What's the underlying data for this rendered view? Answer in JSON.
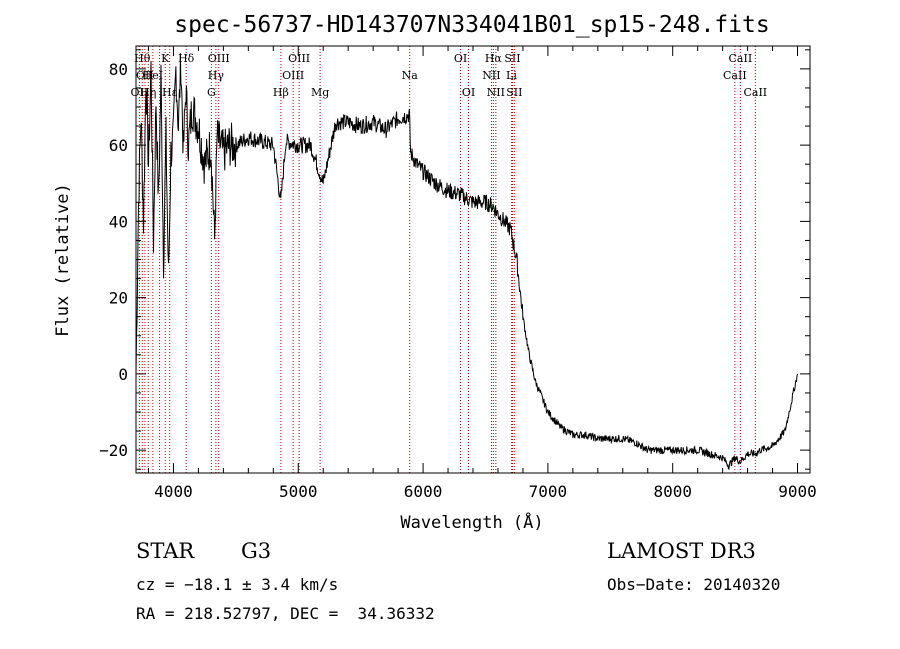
{
  "chart_data": {
    "type": "line",
    "title": "spec-56737-HD143707N334041B01_sp15-248.fits",
    "xlabel": "Wavelength (Å)",
    "ylabel": "Flux (relative)",
    "xlim": [
      3700,
      9100
    ],
    "ylim": [
      -26,
      86
    ],
    "x_ticks": [
      4000,
      5000,
      6000,
      7000,
      8000,
      9000
    ],
    "y_ticks": [
      -20,
      0,
      20,
      40,
      60,
      80
    ],
    "grid": false,
    "series": [
      {
        "x": [
          3700,
          3720,
          3740,
          3760,
          3780,
          3800,
          3820,
          3840,
          3860,
          3880,
          3900,
          3920,
          3940,
          3960,
          3980,
          4000,
          4020,
          4040,
          4060,
          4080,
          4100,
          4120,
          4150,
          4200,
          4250,
          4300,
          4330,
          4350,
          4400,
          4450,
          4500,
          4600,
          4700,
          4800,
          4860,
          4900,
          5000,
          5100,
          5200,
          5300,
          5400,
          5500,
          5600,
          5700,
          5800,
          5890,
          5900,
          5950,
          6000,
          6100,
          6200,
          6300,
          6400,
          6500,
          6560,
          6600,
          6700,
          6750,
          6800,
          6850,
          6900,
          6950,
          7000,
          7100,
          7200,
          7300,
          7400,
          7500,
          7600,
          7700,
          7800,
          7900,
          8000,
          8100,
          8200,
          8300,
          8400,
          8450,
          8500,
          8540,
          8600,
          8660,
          8700,
          8800,
          8900,
          9000
        ],
        "y": [
          0,
          45,
          68,
          40,
          78,
          55,
          80,
          35,
          72,
          45,
          78,
          30,
          62,
          25,
          58,
          62,
          80,
          65,
          82,
          58,
          75,
          60,
          70,
          65,
          55,
          60,
          35,
          62,
          58,
          60,
          60,
          62,
          61,
          60,
          45,
          61,
          60,
          60,
          50,
          66,
          66,
          65,
          66,
          64,
          67,
          68,
          58,
          55,
          53,
          50,
          48,
          47,
          45,
          45,
          44,
          42,
          38,
          30,
          15,
          5,
          -2,
          -6,
          -10,
          -14,
          -16,
          -16,
          -17,
          -17,
          -17,
          -18,
          -20,
          -20,
          -20,
          -20,
          -20,
          -21,
          -22,
          -24,
          -22,
          -23,
          -21,
          -21,
          -20,
          -19,
          -15,
          0
        ]
      }
    ],
    "spectral_lines": [
      {
        "wavelength": 3727,
        "label": "OII",
        "row": 2
      },
      {
        "wavelength": 3750,
        "label": "Hθ",
        "row": 0
      },
      {
        "wavelength": 3771,
        "label": "OII",
        "row": 1
      },
      {
        "wavelength": 3798,
        "label": "Hη",
        "row": 2
      },
      {
        "wavelength": 3835,
        "label": "HeI",
        "row": 1
      },
      {
        "wavelength": 3889,
        "label": "",
        "row": 0
      },
      {
        "wavelength": 3934,
        "label": "K",
        "row": 0
      },
      {
        "wavelength": 3970,
        "label": "Hε",
        "row": 2
      },
      {
        "wavelength": 4102,
        "label": "Hδ",
        "row": 0
      },
      {
        "wavelength": 4304,
        "label": "G",
        "row": 2
      },
      {
        "wavelength": 4340,
        "label": "Hγ",
        "row": 1
      },
      {
        "wavelength": 4363,
        "label": "OIII",
        "row": 0
      },
      {
        "wavelength": 4861,
        "label": "Hβ",
        "row": 2
      },
      {
        "wavelength": 4959,
        "label": "OIII",
        "row": 1
      },
      {
        "wavelength": 5007,
        "label": "OIII",
        "row": 0
      },
      {
        "wavelength": 5175,
        "label": "Mg",
        "row": 2
      },
      {
        "wavelength": 5893,
        "label": "Na",
        "row": 1
      },
      {
        "wavelength": 6300,
        "label": "OI",
        "row": 0
      },
      {
        "wavelength": 6364,
        "label": "OI",
        "row": 2
      },
      {
        "wavelength": 6548,
        "label": "NII",
        "row": 1
      },
      {
        "wavelength": 6563,
        "label": "Hα",
        "row": 0
      },
      {
        "wavelength": 6583,
        "label": "NII",
        "row": 2
      },
      {
        "wavelength": 6708,
        "label": "Li",
        "row": 1
      },
      {
        "wavelength": 6716,
        "label": "SII",
        "row": 0
      },
      {
        "wavelength": 6731,
        "label": "SII",
        "row": 2
      },
      {
        "wavelength": 8498,
        "label": "CaII",
        "row": 1
      },
      {
        "wavelength": 8542,
        "label": "CaII",
        "row": 0
      },
      {
        "wavelength": 8662,
        "label": "CaII",
        "row": 2
      }
    ]
  },
  "info": {
    "class_label": "STAR",
    "subclass": "G3",
    "survey": "LAMOST DR3",
    "cz": "cz = −18.1 ± 3.4 km/s",
    "obs_date": "Obs−Date: 20140320",
    "coords": "RA = 218.52797, DEC =  34.36332"
  }
}
